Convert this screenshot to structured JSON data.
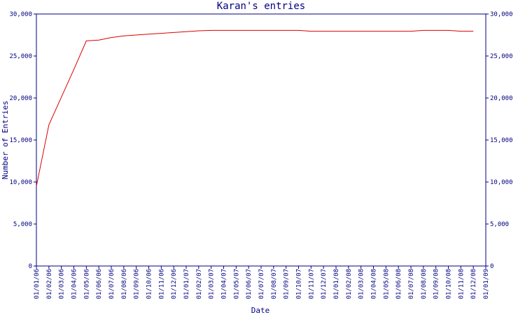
{
  "chart_data": {
    "type": "line",
    "title": "Karan's entries",
    "x_label": "Date",
    "y_label": "Number of Entries",
    "categories": [
      "01/01/06",
      "01/02/06",
      "01/03/06",
      "01/04/06",
      "01/05/06",
      "01/06/06",
      "01/07/06",
      "01/08/06",
      "01/09/06",
      "01/10/06",
      "01/11/06",
      "01/12/06",
      "01/01/07",
      "01/02/07",
      "01/03/07",
      "01/04/07",
      "01/05/07",
      "01/06/07",
      "01/07/07",
      "01/08/07",
      "01/09/07",
      "01/10/07",
      "01/11/07",
      "01/12/07",
      "01/01/08",
      "01/02/08",
      "01/03/08",
      "01/04/08",
      "01/05/08",
      "01/06/08",
      "01/07/08",
      "01/08/08",
      "01/09/08",
      "01/10/08",
      "01/11/08",
      "01/12/08",
      "01/01/09"
    ],
    "series": [
      {
        "name": "Karan",
        "color": "#dd0000",
        "values": [
          9500,
          16800,
          20100,
          23400,
          26800,
          26900,
          27200,
          27400,
          27500,
          27600,
          27700,
          27800,
          27900,
          28000,
          28050,
          28050,
          28050,
          28050,
          28050,
          28050,
          28050,
          28050,
          27950,
          27950,
          27950,
          27950,
          27950,
          27950,
          27950,
          27950,
          27950,
          28050,
          28050,
          28050,
          27950,
          27950,
          null
        ]
      }
    ],
    "ylim": [
      0,
      30000
    ],
    "yticks": [
      0,
      {
        "value": 5000,
        "label": "5,000"
      },
      {
        "value": 10000,
        "label": "10,000"
      },
      {
        "value": 15000,
        "label": "15,000"
      },
      {
        "value": 20000,
        "label": "20,000"
      },
      {
        "value": 25000,
        "label": "25,000"
      },
      {
        "value": 30000,
        "label": "30,000"
      }
    ],
    "axis_color": "#000080"
  }
}
